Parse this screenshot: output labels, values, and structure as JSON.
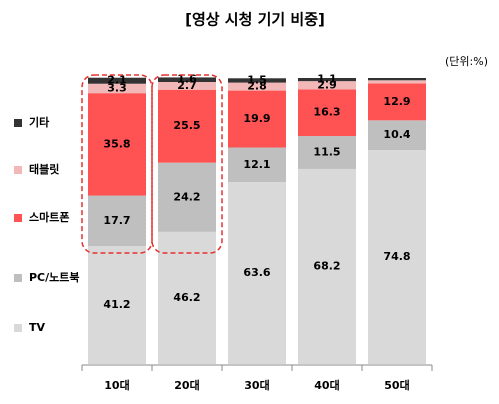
{
  "chart_data": {
    "type": "stacked_bar",
    "title": "[영상 시청 기기 비중]",
    "unit": "(단위:%)",
    "categories": [
      "10대",
      "20대",
      "30대",
      "40대",
      "50대"
    ],
    "series": [
      {
        "name": "TV",
        "color": "#d9d9d9",
        "values": [
          41.2,
          46.2,
          63.6,
          68.2,
          74.8
        ]
      },
      {
        "name": "PC/노트북",
        "color": "#bfbfbf",
        "values": [
          17.7,
          24.2,
          12.1,
          11.5,
          10.4
        ]
      },
      {
        "name": "스마트폰",
        "color": "#ff5353",
        "values": [
          35.8,
          25.5,
          19.9,
          16.3,
          12.9
        ]
      },
      {
        "name": "태블릿",
        "color": "#f2b8b8",
        "values": [
          3.3,
          2.7,
          2.8,
          2.9,
          1.1
        ],
        "value_labels": [
          "3.3",
          "2.7",
          "2.8",
          "2.9",
          null
        ]
      },
      {
        "name": "기타",
        "color": "#333333",
        "values": [
          2.1,
          1.6,
          1.5,
          1.1,
          0.8
        ],
        "value_labels": [
          "2.1",
          "1.6",
          "1.5",
          "1.1",
          null
        ]
      }
    ],
    "ylim": [
      0,
      100
    ]
  }
}
